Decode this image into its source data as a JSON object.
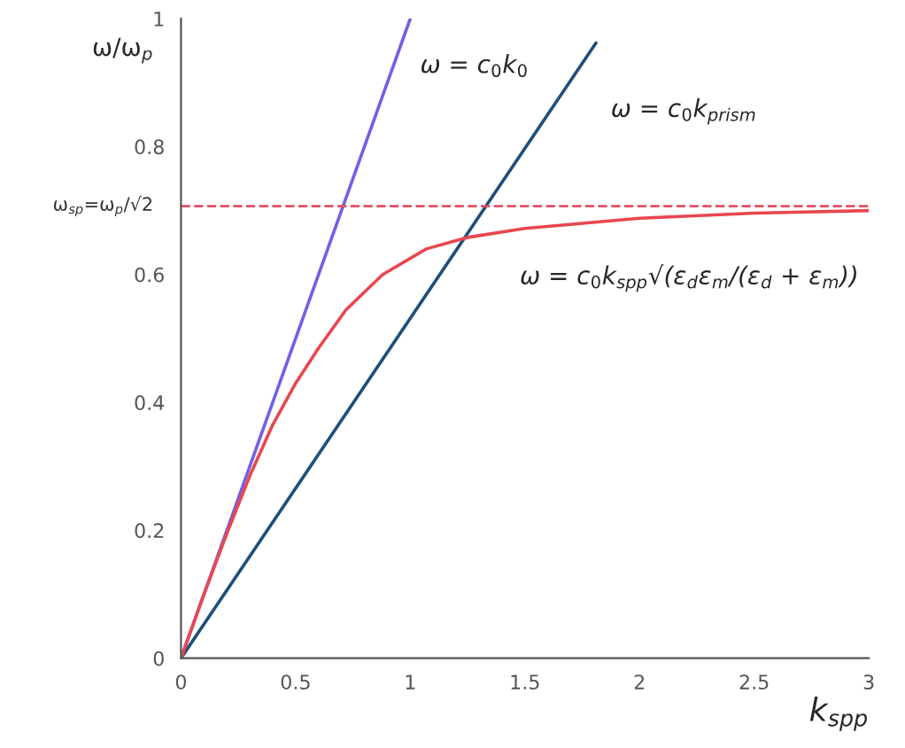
{
  "chart_data": {
    "type": "line",
    "xlabel": "k$_{spp}$",
    "ylabel": "ω/ω$_{p}$",
    "series": [
      {
        "name": "ω = c$_{0}$k$_{0}$",
        "color": "#7060e8",
        "x": [
          0,
          1.0
        ],
        "values": [
          0,
          1.0
        ]
      },
      {
        "name": "ω = c$_{0}$k$_{prism}$",
        "color": "#1f4e79",
        "x": [
          0,
          1.81
        ],
        "values": [
          0,
          0.962
        ]
      },
      {
        "name": "ω = c$_{0}$k$_{spp}$√(ε$_{d}$ε$_{m}$/(ε$_{d}$ + ε$_{m}$))",
        "color": "#e8474f",
        "x": [
          0,
          0.1,
          0.2,
          0.3,
          0.4,
          0.5,
          0.6,
          0.72,
          0.88,
          1.07,
          1.25,
          1.5,
          2.0,
          2.5,
          3.0
        ],
        "values": [
          0,
          0.1,
          0.195,
          0.285,
          0.365,
          0.43,
          0.485,
          0.545,
          0.6,
          0.64,
          0.658,
          0.672,
          0.688,
          0.696,
          0.7
        ]
      }
    ],
    "ref_lines": [
      {
        "axis": "y",
        "value": 0.707,
        "label": "ω$_{sp}$=ω$_{p}$/√2",
        "color": "#e05060",
        "line_style": "dashed"
      }
    ],
    "xlim": [
      0,
      3
    ],
    "ylim": [
      0,
      1
    ],
    "xticks": [
      0,
      0.5,
      1,
      1.5,
      2,
      2.5,
      3
    ],
    "yticks": [
      0,
      0.2,
      0.4,
      0.6,
      0.8,
      1
    ],
    "grid": false,
    "legend": false,
    "marker": "none",
    "line_style": "solid"
  }
}
